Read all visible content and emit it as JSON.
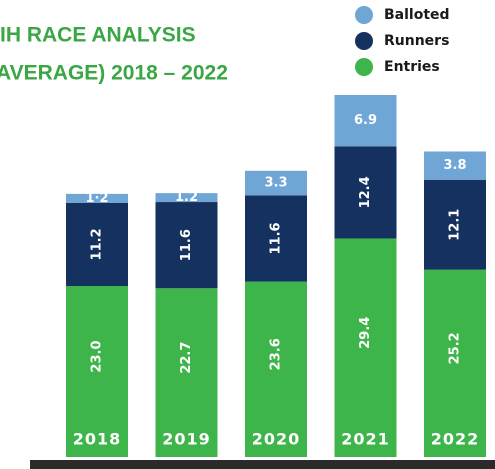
{
  "chart_data": {
    "type": "stacked_bar",
    "title_lines": [
      "IH RACE ANALYSIS",
      "AVERAGE) 2018 – 2022"
    ],
    "categories": [
      "2018",
      "2019",
      "2020",
      "2021",
      "2022"
    ],
    "series": [
      {
        "name": "Entries",
        "color": "#3db54a",
        "values": [
          23.0,
          22.7,
          23.6,
          29.4,
          25.2
        ],
        "value_labels": [
          "23.0",
          "22.7",
          "23.6",
          "29.4",
          "25.2"
        ]
      },
      {
        "name": "Runners",
        "color": "#14315f",
        "values": [
          11.2,
          11.6,
          11.6,
          12.4,
          12.1
        ],
        "value_labels": [
          "11.2",
          "11.6",
          "11.6",
          "12.4",
          "12.1"
        ]
      },
      {
        "name": "Balloted",
        "color": "#6fa6d6",
        "values": [
          1.2,
          1.2,
          3.3,
          6.9,
          3.8
        ],
        "value_labels": [
          "1·2",
          "1.2",
          "3.3",
          "6.9",
          "3.8"
        ]
      }
    ],
    "legend_order": [
      "Balloted",
      "Runners",
      "Entries"
    ]
  }
}
